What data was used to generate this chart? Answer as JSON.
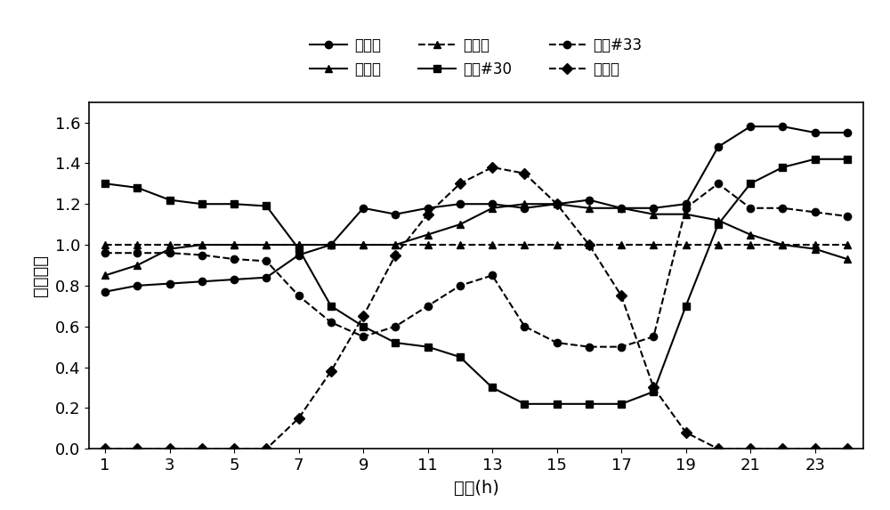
{
  "hours": [
    1,
    2,
    3,
    4,
    5,
    6,
    7,
    8,
    9,
    10,
    11,
    12,
    13,
    14,
    15,
    16,
    17,
    18,
    19,
    20,
    21,
    22,
    23,
    24
  ],
  "dian_fu_he": [
    0.77,
    0.8,
    0.81,
    0.82,
    0.83,
    0.84,
    0.95,
    1.0,
    1.18,
    1.15,
    1.18,
    1.2,
    1.2,
    1.18,
    1.2,
    1.22,
    1.18,
    1.18,
    1.2,
    1.48,
    1.58,
    1.58,
    1.55,
    1.55
  ],
  "re_fu_he": [
    0.85,
    0.9,
    0.98,
    1.0,
    1.0,
    1.0,
    1.0,
    1.0,
    1.0,
    1.0,
    1.05,
    1.1,
    1.18,
    1.2,
    1.2,
    1.18,
    1.18,
    1.15,
    1.15,
    1.12,
    1.05,
    1.0,
    0.98,
    0.93
  ],
  "qi_fu_he": [
    1.0,
    1.0,
    1.0,
    1.0,
    1.0,
    1.0,
    1.0,
    1.0,
    1.0,
    1.0,
    1.0,
    1.0,
    1.0,
    1.0,
    1.0,
    1.0,
    1.0,
    1.0,
    1.0,
    1.0,
    1.0,
    1.0,
    1.0,
    1.0
  ],
  "feng30": [
    1.3,
    1.28,
    1.22,
    1.2,
    1.2,
    1.19,
    0.98,
    0.7,
    0.6,
    0.52,
    0.5,
    0.45,
    0.3,
    0.22,
    0.22,
    0.22,
    0.22,
    0.28,
    0.7,
    1.1,
    1.3,
    1.38,
    1.42,
    1.42
  ],
  "feng33": [
    0.96,
    0.96,
    0.96,
    0.95,
    0.93,
    0.92,
    0.75,
    0.62,
    0.55,
    0.6,
    0.7,
    0.8,
    0.85,
    0.6,
    0.52,
    0.5,
    0.5,
    0.55,
    1.18,
    1.3,
    1.18,
    1.18,
    1.16,
    1.14
  ],
  "solar": [
    0.0,
    0.0,
    0.0,
    0.0,
    0.0,
    0.0,
    0.15,
    0.38,
    0.65,
    0.95,
    1.15,
    1.3,
    1.38,
    1.35,
    1.2,
    1.0,
    0.75,
    0.3,
    0.08,
    0.0,
    0.0,
    0.0,
    0.0,
    0.0
  ],
  "label_dian": "电负荷",
  "label_re": "热负荷",
  "label_qi": "气负荷",
  "label_f30": "风电#30",
  "label_f33": "风电#33",
  "label_sol": "太阳能",
  "ylabel": "相对功率",
  "xlabel": "时间(h)",
  "ylim": [
    0.0,
    1.7
  ],
  "yticks": [
    0.0,
    0.2,
    0.4,
    0.6,
    0.8,
    1.0,
    1.2,
    1.4,
    1.6
  ],
  "xticks": [
    1,
    3,
    5,
    7,
    9,
    11,
    13,
    15,
    17,
    19,
    21,
    23
  ],
  "line_color": "#000000",
  "bg_color": "#ffffff"
}
